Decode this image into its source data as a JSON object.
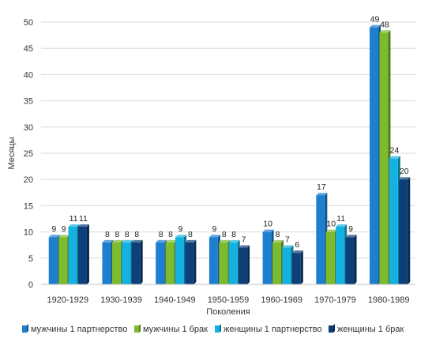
{
  "chart_data": {
    "type": "bar",
    "categories": [
      "1920-1929",
      "1930-1939",
      "1940-1949",
      "1950-1959",
      "1960-1969",
      "1970-1979",
      "1980-1989"
    ],
    "series": [
      {
        "name": "мужчины 1 партнерство",
        "color": "#1e7fd0",
        "values": [
          9,
          8,
          8,
          9,
          10,
          17,
          49
        ]
      },
      {
        "name": "мужчины 1 брак",
        "color": "#7dbb2e",
        "values": [
          9,
          8,
          8,
          8,
          8,
          10,
          48
        ]
      },
      {
        "name": "женщины 1 партнерство",
        "color": "#14b2e0",
        "values": [
          11,
          8,
          9,
          8,
          7,
          11,
          24
        ]
      },
      {
        "name": "женщины 1 брак",
        "color": "#0d3f78",
        "values": [
          11,
          8,
          8,
          7,
          6,
          9,
          20
        ]
      }
    ],
    "xlabel": "Поколения",
    "ylabel": "Месяцы",
    "ylim": [
      0,
      50
    ],
    "yticks": [
      0,
      5,
      10,
      15,
      20,
      25,
      30,
      35,
      40,
      45,
      50
    ],
    "grid": true,
    "legend_position": "bottom"
  }
}
